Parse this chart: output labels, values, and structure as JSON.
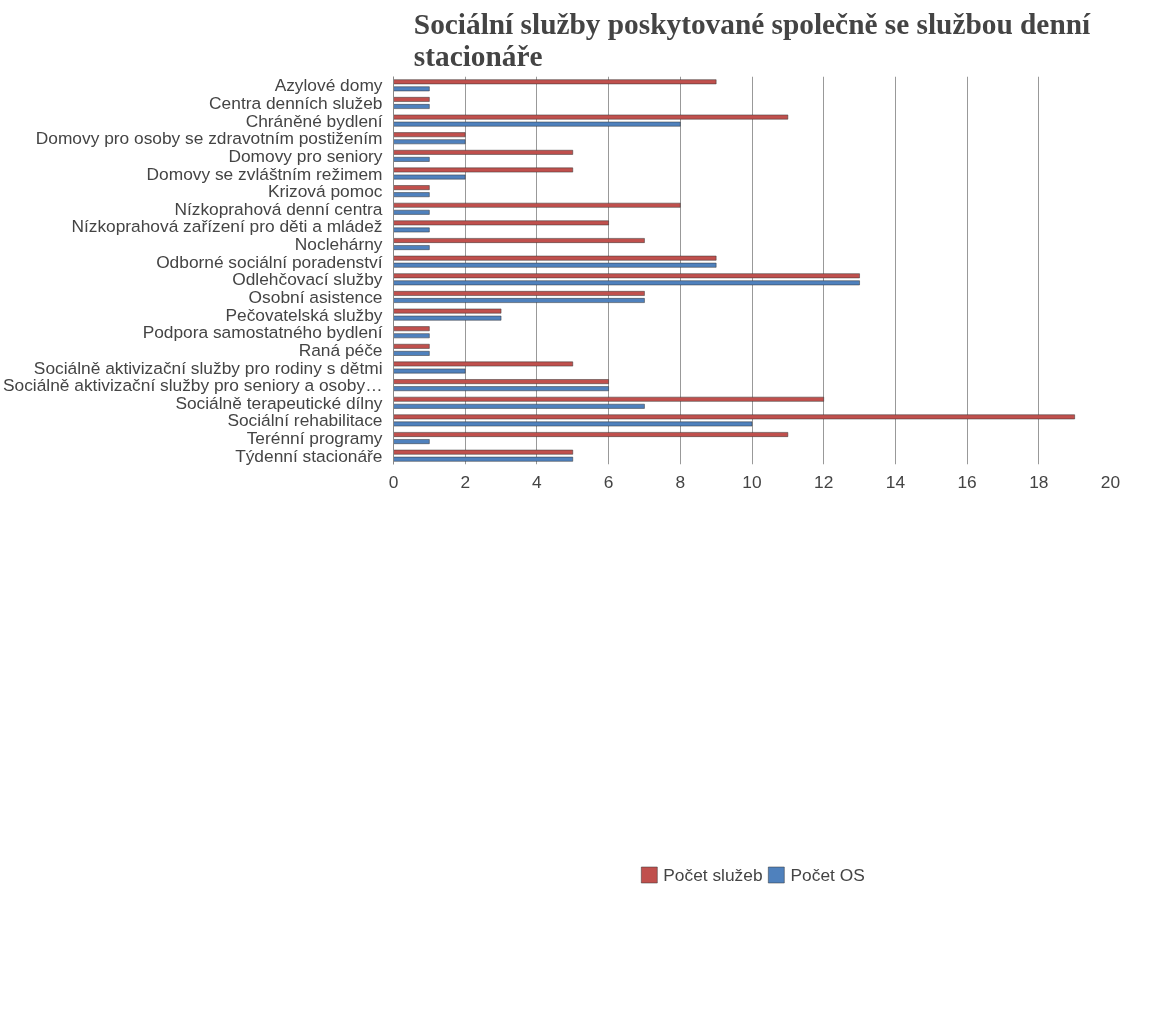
{
  "chart_data": {
    "type": "bar",
    "orientation": "horizontal",
    "title": "Sociální služby poskytované společně se službou denní stacionáře",
    "categories": [
      "Azylové domy",
      "Centra denních služeb",
      "Chráněné bydlení",
      "Domovy pro osoby se zdravotním postižením",
      "Domovy pro seniory",
      "Domovy se zvláštním režimem",
      "Krizová pomoc",
      "Nízkoprahová denní centra",
      "Nízkoprahová zařízení pro děti a mládež",
      "Noclehárny",
      "Odborné sociální poradenství",
      "Odlehčovací služby",
      "Osobní asistence",
      "Pečovatelská služby",
      "Podpora samostatného bydlení",
      "Raná péče",
      "Sociálně aktivizační služby pro rodiny s dětmi",
      "Sociálně aktivizační služby pro seniory a osoby…",
      "Sociálně terapeutické dílny",
      "Sociální rehabilitace",
      "Terénní programy",
      "Týdenní stacionáře"
    ],
    "series": [
      {
        "name": "Počet služeb",
        "color": "#c0504d",
        "values": [
          9,
          1,
          11,
          2,
          5,
          5,
          1,
          8,
          6,
          7,
          9,
          13,
          7,
          3,
          1,
          1,
          5,
          6,
          12,
          19,
          11,
          5
        ]
      },
      {
        "name": "Počet OS",
        "color": "#4f81bd",
        "values": [
          1,
          1,
          8,
          2,
          1,
          2,
          1,
          1,
          1,
          1,
          9,
          13,
          7,
          3,
          1,
          1,
          2,
          6,
          7,
          10,
          1,
          5
        ]
      }
    ],
    "xlim": [
      0,
      20
    ],
    "xticks": [
      0,
      2,
      4,
      6,
      8,
      10,
      12,
      14,
      16,
      18,
      20
    ],
    "grid": "x",
    "legend": "bottom"
  }
}
